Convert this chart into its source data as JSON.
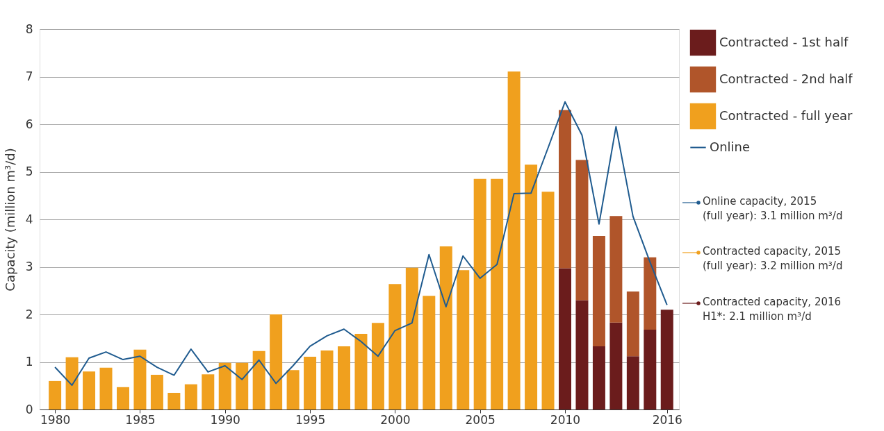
{
  "chart_data": {
    "type": "bar",
    "stacked": true,
    "ylabel": "Capacity (million m³/d)",
    "x": [
      1980,
      1981,
      1982,
      1983,
      1984,
      1985,
      1986,
      1987,
      1988,
      1989,
      1990,
      1991,
      1992,
      1993,
      1994,
      1995,
      1996,
      1997,
      1998,
      1999,
      2000,
      2001,
      2002,
      2003,
      2004,
      2005,
      2006,
      2007,
      2008,
      2009,
      2010,
      2011,
      2012,
      2013,
      2014,
      2015,
      2016
    ],
    "series": [
      {
        "name": "Contracted - 1st half",
        "color": "#6b1c1c",
        "values": [
          null,
          null,
          null,
          null,
          null,
          null,
          null,
          null,
          null,
          null,
          null,
          null,
          null,
          null,
          null,
          null,
          null,
          null,
          null,
          null,
          null,
          null,
          null,
          null,
          null,
          null,
          null,
          null,
          null,
          null,
          2.97,
          2.3,
          1.33,
          1.83,
          1.12,
          1.68,
          2.1
        ]
      },
      {
        "name": "Contracted - 2nd half",
        "color": "#b0552a",
        "values": [
          null,
          null,
          null,
          null,
          null,
          null,
          null,
          null,
          null,
          null,
          null,
          null,
          null,
          null,
          null,
          null,
          null,
          null,
          null,
          null,
          null,
          null,
          null,
          null,
          null,
          null,
          null,
          null,
          null,
          null,
          3.33,
          2.95,
          2.32,
          2.24,
          1.36,
          1.52,
          null
        ]
      },
      {
        "name": "Contracted - full year",
        "color": "#f0a01e",
        "values": [
          0.6,
          1.1,
          0.8,
          0.88,
          0.47,
          1.26,
          0.73,
          0.35,
          0.53,
          0.74,
          0.98,
          0.98,
          1.23,
          2.0,
          0.83,
          1.11,
          1.24,
          1.33,
          1.59,
          1.82,
          2.64,
          2.98,
          2.39,
          3.43,
          2.93,
          4.85,
          4.85,
          7.11,
          5.15,
          4.58,
          null,
          null,
          null,
          null,
          null,
          null,
          null
        ]
      },
      {
        "name": "Online",
        "type": "line",
        "color": "#1f5b8f",
        "values": [
          0.89,
          0.51,
          1.08,
          1.21,
          1.05,
          1.12,
          0.89,
          0.72,
          1.27,
          0.79,
          0.92,
          0.63,
          1.04,
          0.55,
          0.92,
          1.33,
          1.55,
          1.69,
          1.43,
          1.12,
          1.66,
          1.82,
          3.26,
          2.16,
          3.23,
          2.76,
          3.05,
          4.54,
          4.55,
          5.5,
          6.47,
          5.77,
          3.9,
          5.95,
          4.06,
          3.1,
          2.2
        ]
      }
    ],
    "xlim": [
      1979.3,
      2016.5
    ],
    "xticks": [
      1980,
      1985,
      1990,
      1995,
      2000,
      2005,
      2010,
      2016
    ],
    "ylim": [
      0,
      8
    ],
    "yticks": [
      0,
      1,
      2,
      3,
      4,
      5,
      6,
      7,
      8
    ],
    "grid": "y",
    "legend": "top right",
    "annotations": [
      "Online capacity, 2015\n(full year): 3.1 million m³/d",
      "Contracted capacity, 2015\n(full year): 3.2 million m³/d",
      "Contracted capacity, 2016\nH1*: 2.1 million m³/d"
    ]
  }
}
